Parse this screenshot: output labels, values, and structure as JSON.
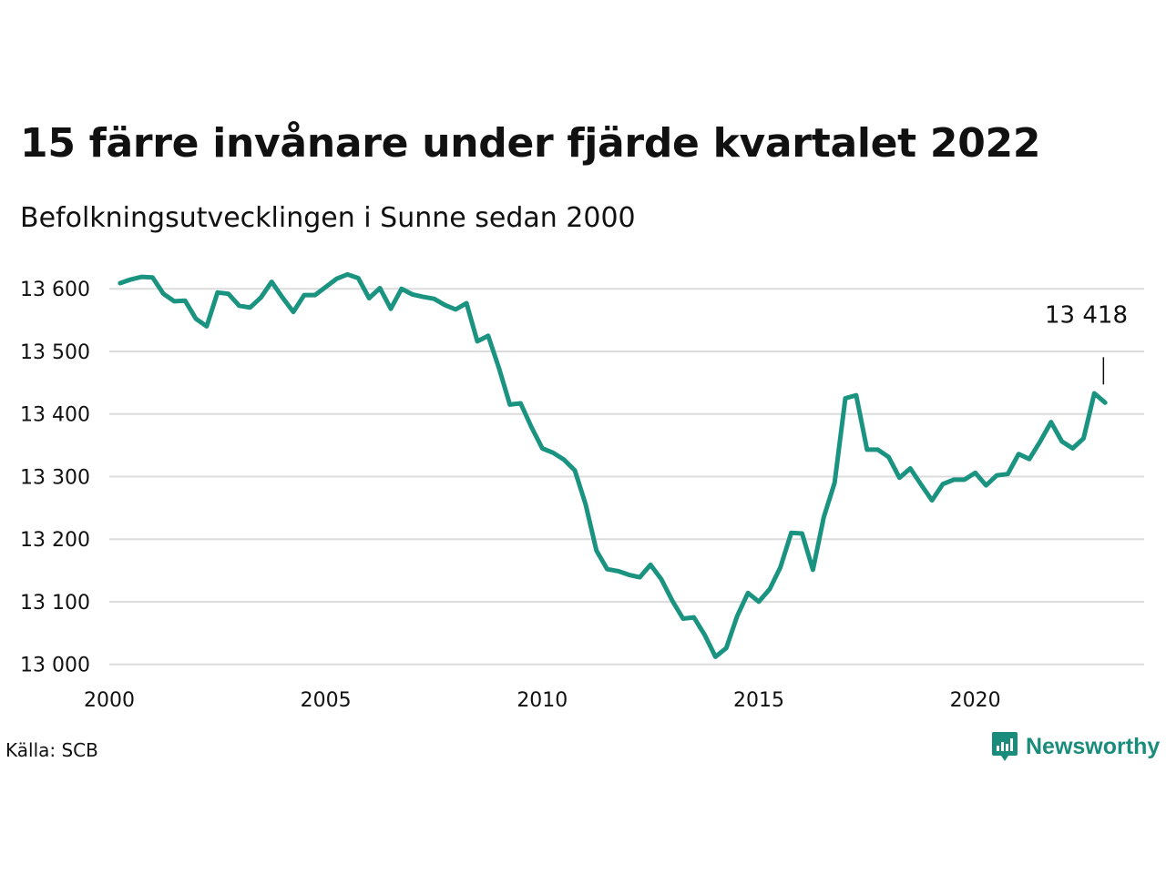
{
  "header": {
    "title": "15 färre invånare under fjärde kvartalet 2022",
    "subtitle": "Befolkningsutvecklingen i Sunne sedan 2000"
  },
  "footer": {
    "source": "Källa: SCB",
    "brand": "Newsworthy",
    "brand_icon": "bar-chart-speech-bubble-icon"
  },
  "colors": {
    "line": "#1a9381",
    "grid": "#dcdcdc",
    "text": "#111111",
    "brand": "#1a8c7c"
  },
  "chart_data": {
    "type": "line",
    "title": "15 färre invånare under fjärde kvartalet 2022",
    "subtitle": "Befolkningsutvecklingen i Sunne sedan 2000",
    "xlabel": "",
    "ylabel": "",
    "xlim": [
      2000,
      2023.9
    ],
    "ylim": [
      12985,
      13625
    ],
    "x_ticks": [
      2000,
      2005,
      2010,
      2015,
      2020
    ],
    "x_tick_labels": [
      "2000",
      "2005",
      "2010",
      "2015",
      "2020"
    ],
    "y_ticks": [
      13000,
      13100,
      13200,
      13300,
      13400,
      13500,
      13600
    ],
    "y_tick_labels": [
      "13 000",
      "13 100",
      "13 200",
      "13 300",
      "13 400",
      "13 500",
      "13 600"
    ],
    "grid": "horizontal",
    "legend": "none",
    "annotation": {
      "text": "13 418",
      "x": 2022.75,
      "y": 13418
    },
    "series": [
      {
        "x": [
          2000.25,
          2000.5,
          2000.75,
          2001.0,
          2001.25,
          2001.5,
          2001.75,
          2002.0,
          2002.25,
          2002.5,
          2002.75,
          2003.0,
          2003.25,
          2003.5,
          2003.75,
          2004.0,
          2004.25,
          2004.5,
          2004.75,
          2005.0,
          2005.25,
          2005.5,
          2005.75,
          2006.0,
          2006.25,
          2006.5,
          2006.75,
          2007.0,
          2007.25,
          2007.5,
          2007.75,
          2008.0,
          2008.25,
          2008.5,
          2008.75,
          2009.0,
          2009.25,
          2009.5,
          2009.75,
          2010.0,
          2010.25,
          2010.5,
          2010.75,
          2011.0,
          2011.25,
          2011.5,
          2011.75,
          2012.0,
          2012.25,
          2012.5,
          2012.75,
          2013.0,
          2013.25,
          2013.5,
          2013.75,
          2014.0,
          2014.25,
          2014.5,
          2014.75,
          2015.0,
          2015.25,
          2015.5,
          2015.75,
          2016.0,
          2016.25,
          2016.5,
          2016.75,
          2017.0,
          2017.25,
          2017.5,
          2017.75,
          2018.0,
          2018.25,
          2018.5,
          2018.75,
          2019.0,
          2019.25,
          2019.5,
          2019.75,
          2020.0,
          2020.25,
          2020.5,
          2020.75,
          2021.0,
          2021.25,
          2021.5,
          2021.75,
          2022.0,
          2022.25,
          2022.5,
          2022.75,
          2023.0
        ],
        "values": [
          13609,
          13615,
          13619,
          13618,
          13592,
          13580,
          13581,
          13552,
          13540,
          13594,
          13592,
          13573,
          13570,
          13586,
          13611,
          13586,
          13563,
          13590,
          13590,
          13603,
          13616,
          13623,
          13617,
          13585,
          13601,
          13568,
          13600,
          13591,
          13587,
          13584,
          13574,
          13567,
          13577,
          13516,
          13525,
          13473,
          13415,
          13417,
          13379,
          13345,
          13338,
          13327,
          13310,
          13256,
          13182,
          13152,
          13149,
          13143,
          13139,
          13159,
          13136,
          13102,
          13073,
          13075,
          13047,
          13012,
          13026,
          13077,
          13114,
          13100,
          13120,
          13155,
          13210,
          13209,
          13151,
          13235,
          13290,
          13425,
          13430,
          13343,
          13343,
          13331,
          13298,
          13313,
          13287,
          13262,
          13288,
          13295,
          13295,
          13306,
          13286,
          13302,
          13304,
          13336,
          13328,
          13356,
          13387,
          13356,
          13345,
          13361,
          13433,
          13418
        ]
      }
    ]
  }
}
